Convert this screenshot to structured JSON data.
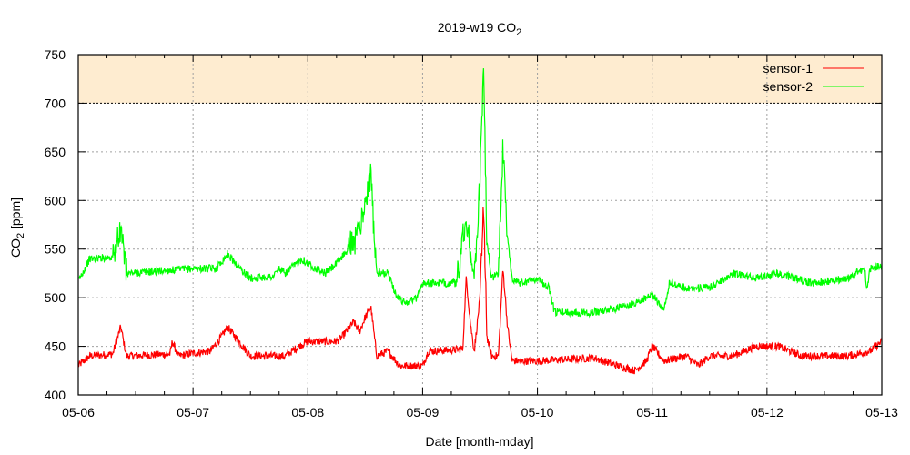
{
  "chart_data": {
    "type": "line",
    "title": "2019-w19 CO",
    "title_sub": "2",
    "xlabel": "Date [month-mday]",
    "ylabel": "CO",
    "ylabel_sub": "2",
    "ylabel_unit": " [ppm]",
    "xlim_days": [
      0,
      7
    ],
    "ylim": [
      400,
      750
    ],
    "x_ticks": [
      "05-06",
      "05-07",
      "05-08",
      "05-09",
      "05-10",
      "05-11",
      "05-12",
      "05-13"
    ],
    "y_ticks": [
      400,
      450,
      500,
      550,
      600,
      650,
      700,
      750
    ],
    "grid": true,
    "warning_band": {
      "from": 700,
      "to": 750,
      "color": "#feecd0"
    },
    "legend_position": "top-right",
    "noise_ppm": 4,
    "series": [
      {
        "name": "sensor-1",
        "color": "#ff0000",
        "points": [
          [
            0,
            430
          ],
          [
            0.1,
            440
          ],
          [
            0.3,
            442
          ],
          [
            0.37,
            470
          ],
          [
            0.42,
            440
          ],
          [
            0.8,
            442
          ],
          [
            0.82,
            455
          ],
          [
            0.87,
            440
          ],
          [
            1.0,
            443
          ],
          [
            1.15,
            445
          ],
          [
            1.25,
            460
          ],
          [
            1.3,
            470
          ],
          [
            1.4,
            455
          ],
          [
            1.5,
            440
          ],
          [
            1.8,
            440
          ],
          [
            1.95,
            452
          ],
          [
            2.0,
            455
          ],
          [
            2.25,
            455
          ],
          [
            2.3,
            460
          ],
          [
            2.4,
            475
          ],
          [
            2.45,
            465
          ],
          [
            2.5,
            480
          ],
          [
            2.55,
            490
          ],
          [
            2.6,
            440
          ],
          [
            2.7,
            445
          ],
          [
            2.8,
            430
          ],
          [
            3.0,
            430
          ],
          [
            3.05,
            445
          ],
          [
            3.35,
            447
          ],
          [
            3.38,
            520
          ],
          [
            3.42,
            470
          ],
          [
            3.45,
            445
          ],
          [
            3.5,
            500
          ],
          [
            3.53,
            590
          ],
          [
            3.56,
            460
          ],
          [
            3.6,
            440
          ],
          [
            3.66,
            440
          ],
          [
            3.7,
            530
          ],
          [
            3.74,
            470
          ],
          [
            3.78,
            435
          ],
          [
            4.0,
            435
          ],
          [
            4.5,
            438
          ],
          [
            4.7,
            430
          ],
          [
            4.85,
            425
          ],
          [
            4.95,
            435
          ],
          [
            5.0,
            450
          ],
          [
            5.1,
            435
          ],
          [
            5.3,
            440
          ],
          [
            5.4,
            430
          ],
          [
            5.5,
            440
          ],
          [
            5.7,
            440
          ],
          [
            5.9,
            450
          ],
          [
            6.1,
            450
          ],
          [
            6.3,
            440
          ],
          [
            6.7,
            440
          ],
          [
            6.9,
            445
          ],
          [
            7.0,
            455
          ]
        ]
      },
      {
        "name": "sensor-2",
        "color": "#00ff00",
        "points": [
          [
            0,
            517
          ],
          [
            0.1,
            540
          ],
          [
            0.3,
            542
          ],
          [
            0.37,
            570
          ],
          [
            0.42,
            525
          ],
          [
            1.0,
            530
          ],
          [
            1.2,
            530
          ],
          [
            1.3,
            545
          ],
          [
            1.45,
            525
          ],
          [
            1.5,
            520
          ],
          [
            1.7,
            522
          ],
          [
            1.75,
            530
          ],
          [
            1.8,
            525
          ],
          [
            1.95,
            540
          ],
          [
            2.0,
            535
          ],
          [
            2.15,
            525
          ],
          [
            2.25,
            535
          ],
          [
            2.35,
            550
          ],
          [
            2.45,
            570
          ],
          [
            2.5,
            600
          ],
          [
            2.55,
            625
          ],
          [
            2.6,
            525
          ],
          [
            2.7,
            525
          ],
          [
            2.78,
            500
          ],
          [
            2.85,
            495
          ],
          [
            2.95,
            500
          ],
          [
            3.0,
            515
          ],
          [
            3.3,
            515
          ],
          [
            3.38,
            585
          ],
          [
            3.42,
            540
          ],
          [
            3.45,
            520
          ],
          [
            3.5,
            620
          ],
          [
            3.53,
            735
          ],
          [
            3.56,
            560
          ],
          [
            3.6,
            520
          ],
          [
            3.66,
            525
          ],
          [
            3.7,
            650
          ],
          [
            3.74,
            560
          ],
          [
            3.78,
            520
          ],
          [
            3.85,
            515
          ],
          [
            4.0,
            520
          ],
          [
            4.1,
            510
          ],
          [
            4.15,
            485
          ],
          [
            4.5,
            485
          ],
          [
            4.8,
            492
          ],
          [
            5.0,
            503
          ],
          [
            5.1,
            488
          ],
          [
            5.15,
            515
          ],
          [
            5.3,
            510
          ],
          [
            5.5,
            510
          ],
          [
            5.7,
            525
          ],
          [
            5.9,
            520
          ],
          [
            6.1,
            525
          ],
          [
            6.4,
            515
          ],
          [
            6.7,
            520
          ],
          [
            6.85,
            530
          ],
          [
            6.87,
            510
          ],
          [
            6.9,
            530
          ],
          [
            7.0,
            533
          ]
        ]
      }
    ]
  }
}
